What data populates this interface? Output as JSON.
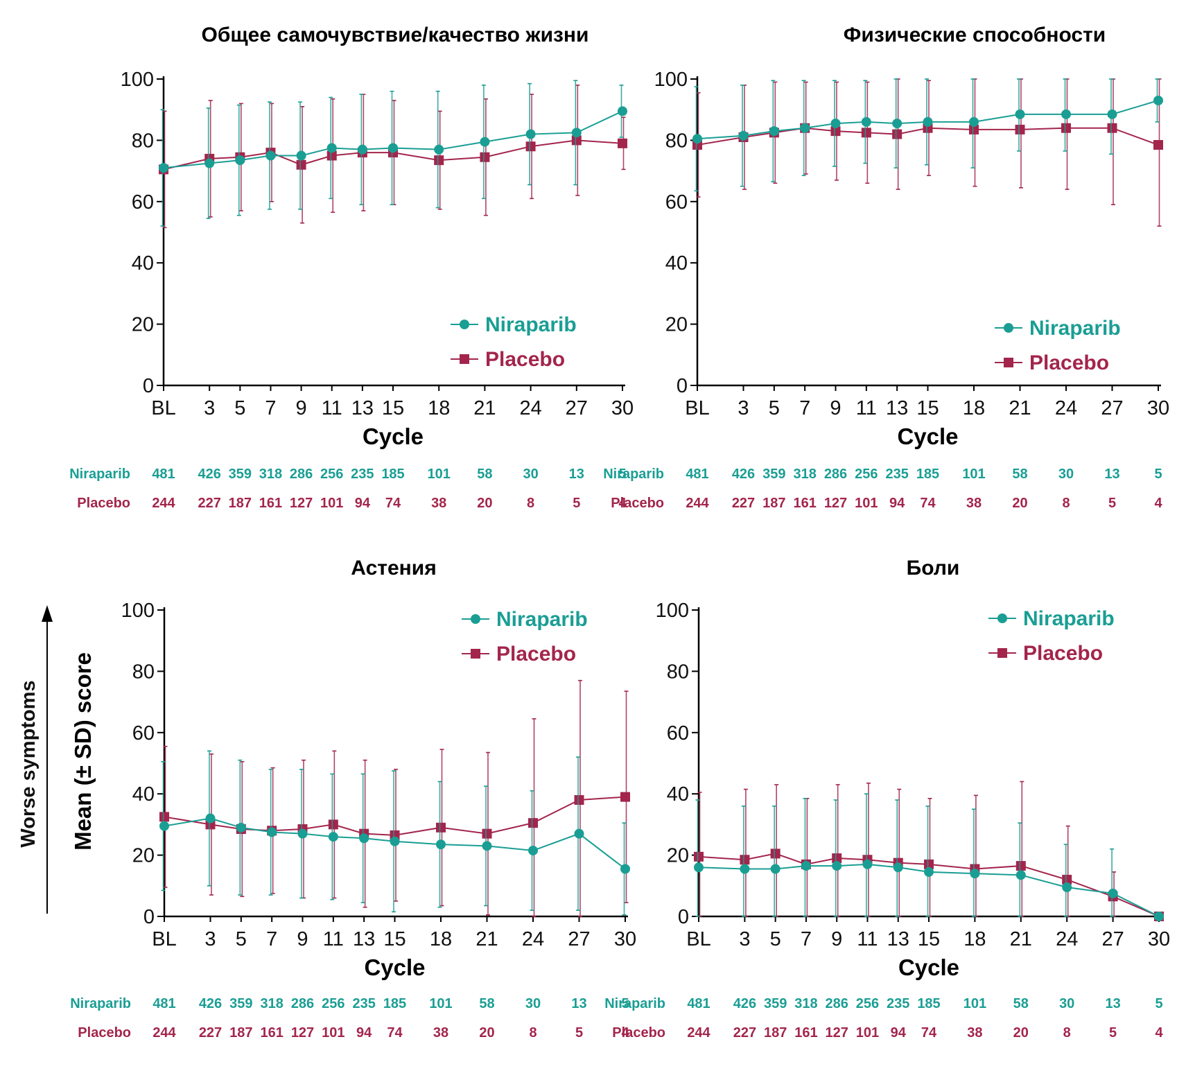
{
  "colors": {
    "niraparib": "#1a9e94",
    "placebo": "#a3254c",
    "axis": "#000000"
  },
  "y_axis_outer_label": "Worse symptoms",
  "y_axis_label": "Mean (± SD) score",
  "chart_data": [
    {
      "type": "line",
      "title": "Общее самочувствие/качество жизни",
      "xlabel": "Cycle",
      "ylabel": "",
      "ylim": [
        0,
        100
      ],
      "yticks": [
        0,
        20,
        40,
        60,
        80,
        100
      ],
      "x": [
        "BL",
        "3",
        "5",
        "7",
        "9",
        "11",
        "13",
        "15",
        "18",
        "21",
        "24",
        "27",
        "30"
      ],
      "legend_position": "bottom-right",
      "series": [
        {
          "name": "Niraparib",
          "marker": "circle",
          "values": [
            71,
            72.5,
            73.5,
            75,
            75,
            77.5,
            77,
            77.5,
            77,
            79.5,
            82,
            82.5,
            89.5
          ],
          "sd": [
            19,
            18,
            18,
            17.5,
            17.5,
            16.5,
            18,
            18.5,
            19,
            18.5,
            16.5,
            17,
            8.5
          ]
        },
        {
          "name": "Placebo",
          "marker": "square",
          "values": [
            70.5,
            74,
            74.5,
            76,
            72,
            75,
            76,
            76,
            73.5,
            74.5,
            78,
            80,
            79
          ],
          "sd": [
            19,
            19,
            17.5,
            16,
            19,
            18.5,
            19,
            17,
            16,
            19,
            17,
            18,
            8.5
          ]
        }
      ],
      "at_risk": {
        "Niraparib": [
          "481",
          "426",
          "359",
          "318",
          "286",
          "256",
          "235",
          "185",
          "101",
          "58",
          "30",
          "13",
          "5"
        ],
        "Placebo": [
          "244",
          "227",
          "187",
          "161",
          "127",
          "101",
          "94",
          "74",
          "38",
          "20",
          "8",
          "5",
          "4"
        ]
      }
    },
    {
      "type": "line",
      "title": "Физические способности",
      "xlabel": "Cycle",
      "ylabel": "",
      "ylim": [
        0,
        100
      ],
      "yticks": [
        0,
        20,
        40,
        60,
        80,
        100
      ],
      "x": [
        "BL",
        "3",
        "5",
        "7",
        "9",
        "11",
        "13",
        "15",
        "18",
        "21",
        "24",
        "27",
        "30"
      ],
      "legend_position": "bottom-right",
      "series": [
        {
          "name": "Niraparib",
          "marker": "circle",
          "values": [
            80.5,
            81.5,
            83,
            84,
            85.5,
            86,
            85.5,
            86,
            86,
            88.5,
            88.5,
            88.5,
            93
          ],
          "sd": [
            17,
            16.5,
            16.5,
            15.5,
            14,
            13.5,
            14.5,
            14,
            15,
            12,
            12,
            13,
            7
          ]
        },
        {
          "name": "Placebo",
          "marker": "square",
          "values": [
            78.5,
            81,
            82.5,
            84,
            83,
            82.5,
            82,
            84,
            83.5,
            83.5,
            84,
            84,
            78.5
          ],
          "sd": [
            17,
            17,
            16.5,
            15,
            16,
            16.5,
            18,
            15.5,
            18.5,
            19,
            20,
            25,
            26.5
          ]
        }
      ],
      "at_risk": {
        "Niraparib": [
          "481",
          "426",
          "359",
          "318",
          "286",
          "256",
          "235",
          "185",
          "101",
          "58",
          "30",
          "13",
          "5"
        ],
        "Placebo": [
          "244",
          "227",
          "187",
          "161",
          "127",
          "101",
          "94",
          "74",
          "38",
          "20",
          "8",
          "5",
          "4"
        ]
      }
    },
    {
      "type": "line",
      "title": "Астения",
      "xlabel": "Cycle",
      "ylabel": "Mean (± SD) score",
      "ylim": [
        0,
        100
      ],
      "yticks": [
        0,
        20,
        40,
        60,
        80,
        100
      ],
      "x": [
        "BL",
        "3",
        "5",
        "7",
        "9",
        "11",
        "13",
        "15",
        "18",
        "21",
        "24",
        "27",
        "30"
      ],
      "legend_position": "top-right",
      "series": [
        {
          "name": "Niraparib",
          "marker": "circle",
          "values": [
            29.5,
            32,
            29,
            27.5,
            27,
            26,
            25.5,
            24.5,
            23.5,
            23,
            21.5,
            27,
            15.5
          ],
          "sd": [
            21,
            22,
            22,
            20.5,
            21,
            20.5,
            21,
            23,
            20.5,
            19.5,
            19.5,
            25,
            15
          ]
        },
        {
          "name": "Placebo",
          "marker": "square",
          "values": [
            32.5,
            30,
            28.5,
            28,
            28.5,
            30,
            27,
            26.5,
            29,
            27,
            30.5,
            38,
            39
          ],
          "sd": [
            23,
            23,
            22,
            20.5,
            22.5,
            24,
            24,
            21.5,
            25.5,
            26.5,
            34,
            39,
            34.5
          ]
        }
      ],
      "at_risk": {
        "Niraparib": [
          "481",
          "426",
          "359",
          "318",
          "286",
          "256",
          "235",
          "185",
          "101",
          "58",
          "30",
          "13",
          "5"
        ],
        "Placebo": [
          "244",
          "227",
          "187",
          "161",
          "127",
          "101",
          "94",
          "74",
          "38",
          "20",
          "8",
          "5",
          "4"
        ]
      }
    },
    {
      "type": "line",
      "title": "Боли",
      "xlabel": "Cycle",
      "ylabel": "",
      "ylim": [
        0,
        100
      ],
      "yticks": [
        0,
        20,
        40,
        60,
        80,
        100
      ],
      "x": [
        "BL",
        "3",
        "5",
        "7",
        "9",
        "11",
        "13",
        "15",
        "18",
        "21",
        "24",
        "27",
        "30"
      ],
      "legend_position": "top-right",
      "series": [
        {
          "name": "Niraparib",
          "marker": "circle",
          "values": [
            16,
            15.5,
            15.5,
            16.5,
            16.5,
            17,
            16,
            14.5,
            14,
            13.5,
            9.5,
            7.5,
            0
          ],
          "sd": [
            22,
            20.5,
            20.5,
            22,
            21.5,
            23,
            22,
            21.5,
            21,
            17,
            14,
            14.5,
            0
          ]
        },
        {
          "name": "Placebo",
          "marker": "square",
          "values": [
            19.5,
            18.5,
            20.5,
            17,
            19,
            18.5,
            17.5,
            17,
            15.5,
            16.5,
            12,
            6.5,
            0
          ],
          "sd": [
            21,
            23,
            22.5,
            21.5,
            24,
            25,
            24,
            21.5,
            24,
            27.5,
            17.5,
            8,
            0
          ]
        }
      ],
      "at_risk": {
        "Niraparib": [
          "481",
          "426",
          "359",
          "318",
          "286",
          "256",
          "235",
          "185",
          "101",
          "58",
          "30",
          "13",
          "5"
        ],
        "Placebo": [
          "244",
          "227",
          "187",
          "161",
          "127",
          "101",
          "94",
          "74",
          "38",
          "20",
          "8",
          "5",
          "4"
        ]
      }
    }
  ]
}
